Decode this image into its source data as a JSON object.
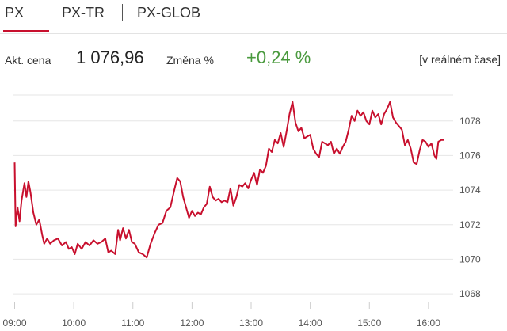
{
  "tabs": [
    {
      "label": "PX",
      "active": true
    },
    {
      "label": "PX-TR",
      "active": false
    },
    {
      "label": "PX-GLOB",
      "active": false
    }
  ],
  "quote": {
    "price_label": "Akt. cena",
    "price": "1 076,96",
    "change_label": "Změna %",
    "change": "+0,24 %",
    "realtime": "[v reálném čase]"
  },
  "colors": {
    "accent": "#c8102e",
    "line": "#c8102e",
    "positive": "#4a9a3e",
    "grid": "#e6e6e6"
  },
  "chart_data": {
    "type": "line",
    "x_ticks": [
      "09:00",
      "10:00",
      "11:00",
      "12:00",
      "13:00",
      "14:00",
      "15:00",
      "16:00"
    ],
    "y_ticks": [
      1068,
      1070,
      1072,
      1074,
      1076,
      1078
    ],
    "ylim": [
      1067.5,
      1079.5
    ],
    "xlim": [
      "08:58",
      "16:25"
    ],
    "grid": true,
    "series": [
      {
        "values": [
          [
            "09:00",
            1075.6
          ],
          [
            "09:01",
            1071.9
          ],
          [
            "09:03",
            1073.0
          ],
          [
            "09:05",
            1072.2
          ],
          [
            "09:07",
            1073.4
          ],
          [
            "09:10",
            1074.4
          ],
          [
            "09:12",
            1073.6
          ],
          [
            "09:14",
            1074.5
          ],
          [
            "09:16",
            1073.9
          ],
          [
            "09:19",
            1072.7
          ],
          [
            "09:22",
            1072.0
          ],
          [
            "09:25",
            1072.3
          ],
          [
            "09:28",
            1071.4
          ],
          [
            "09:30",
            1070.9
          ],
          [
            "09:33",
            1071.2
          ],
          [
            "09:36",
            1070.9
          ],
          [
            "09:40",
            1071.1
          ],
          [
            "09:44",
            1071.2
          ],
          [
            "09:48",
            1070.8
          ],
          [
            "09:52",
            1071.0
          ],
          [
            "09:55",
            1070.6
          ],
          [
            "09:58",
            1070.7
          ],
          [
            "10:01",
            1070.3
          ],
          [
            "10:04",
            1070.9
          ],
          [
            "10:08",
            1070.6
          ],
          [
            "10:12",
            1071.0
          ],
          [
            "10:16",
            1070.8
          ],
          [
            "10:20",
            1071.1
          ],
          [
            "10:24",
            1070.9
          ],
          [
            "10:28",
            1071.0
          ],
          [
            "10:32",
            1071.2
          ],
          [
            "10:35",
            1070.4
          ],
          [
            "10:38",
            1070.5
          ],
          [
            "10:42",
            1070.3
          ],
          [
            "10:45",
            1071.7
          ],
          [
            "10:47",
            1071.1
          ],
          [
            "10:50",
            1071.8
          ],
          [
            "10:53",
            1071.2
          ],
          [
            "10:56",
            1071.7
          ],
          [
            "10:59",
            1071.0
          ],
          [
            "11:02",
            1070.9
          ],
          [
            "11:06",
            1070.4
          ],
          [
            "11:10",
            1070.3
          ],
          [
            "11:14",
            1070.1
          ],
          [
            "11:18",
            1070.9
          ],
          [
            "11:22",
            1071.5
          ],
          [
            "11:26",
            1072.0
          ],
          [
            "11:30",
            1072.1
          ],
          [
            "11:34",
            1072.8
          ],
          [
            "11:38",
            1073.0
          ],
          [
            "11:42",
            1074.0
          ],
          [
            "11:45",
            1074.7
          ],
          [
            "11:48",
            1074.5
          ],
          [
            "11:51",
            1073.6
          ],
          [
            "11:54",
            1073.0
          ],
          [
            "11:57",
            1072.4
          ],
          [
            "12:00",
            1072.8
          ],
          [
            "12:03",
            1072.5
          ],
          [
            "12:06",
            1072.7
          ],
          [
            "12:09",
            1072.6
          ],
          [
            "12:12",
            1073.0
          ],
          [
            "12:15",
            1073.2
          ],
          [
            "12:18",
            1074.2
          ],
          [
            "12:21",
            1073.6
          ],
          [
            "12:24",
            1073.4
          ],
          [
            "12:27",
            1073.5
          ],
          [
            "12:30",
            1073.3
          ],
          [
            "12:33",
            1073.4
          ],
          [
            "12:36",
            1073.3
          ],
          [
            "12:39",
            1074.1
          ],
          [
            "12:42",
            1073.1
          ],
          [
            "12:45",
            1073.6
          ],
          [
            "12:48",
            1074.3
          ],
          [
            "12:51",
            1074.2
          ],
          [
            "12:54",
            1074.4
          ],
          [
            "12:57",
            1074.1
          ],
          [
            "13:00",
            1074.6
          ],
          [
            "13:03",
            1075.0
          ],
          [
            "13:06",
            1074.3
          ],
          [
            "13:09",
            1075.2
          ],
          [
            "13:12",
            1075.0
          ],
          [
            "13:15",
            1075.4
          ],
          [
            "13:18",
            1076.4
          ],
          [
            "13:21",
            1076.2
          ],
          [
            "13:24",
            1076.9
          ],
          [
            "13:27",
            1076.7
          ],
          [
            "13:30",
            1077.3
          ],
          [
            "13:33",
            1076.5
          ],
          [
            "13:36",
            1077.4
          ],
          [
            "13:39",
            1078.4
          ],
          [
            "13:42",
            1079.1
          ],
          [
            "13:45",
            1077.9
          ],
          [
            "13:48",
            1077.4
          ],
          [
            "13:51",
            1077.6
          ],
          [
            "13:54",
            1077.0
          ],
          [
            "13:57",
            1077.1
          ],
          [
            "14:00",
            1077.2
          ],
          [
            "14:03",
            1076.4
          ],
          [
            "14:06",
            1076.1
          ],
          [
            "14:09",
            1075.9
          ],
          [
            "14:12",
            1076.8
          ],
          [
            "14:15",
            1076.7
          ],
          [
            "14:18",
            1076.6
          ],
          [
            "14:21",
            1076.8
          ],
          [
            "14:24",
            1076.1
          ],
          [
            "14:27",
            1076.4
          ],
          [
            "14:30",
            1076.1
          ],
          [
            "14:33",
            1076.5
          ],
          [
            "14:36",
            1076.8
          ],
          [
            "14:39",
            1077.5
          ],
          [
            "14:42",
            1078.3
          ],
          [
            "14:45",
            1078.0
          ],
          [
            "14:48",
            1078.6
          ],
          [
            "14:51",
            1078.3
          ],
          [
            "14:54",
            1078.5
          ],
          [
            "14:57",
            1078.0
          ],
          [
            "15:00",
            1077.8
          ],
          [
            "15:03",
            1078.6
          ],
          [
            "15:06",
            1078.2
          ],
          [
            "15:09",
            1078.4
          ],
          [
            "15:12",
            1077.8
          ],
          [
            "15:15",
            1078.4
          ],
          [
            "15:18",
            1078.7
          ],
          [
            "15:21",
            1079.1
          ],
          [
            "15:24",
            1078.2
          ],
          [
            "15:27",
            1077.9
          ],
          [
            "15:30",
            1077.7
          ],
          [
            "15:33",
            1077.5
          ],
          [
            "15:36",
            1076.6
          ],
          [
            "15:39",
            1076.9
          ],
          [
            "15:42",
            1076.4
          ],
          [
            "15:45",
            1075.6
          ],
          [
            "15:48",
            1075.5
          ],
          [
            "15:51",
            1076.3
          ],
          [
            "15:54",
            1076.9
          ],
          [
            "15:57",
            1076.8
          ],
          [
            "16:00",
            1076.5
          ],
          [
            "16:03",
            1076.7
          ],
          [
            "16:06",
            1076.0
          ],
          [
            "16:08",
            1075.8
          ],
          [
            "16:10",
            1076.8
          ],
          [
            "16:13",
            1076.9
          ],
          [
            "16:16",
            1076.9
          ]
        ]
      }
    ]
  }
}
